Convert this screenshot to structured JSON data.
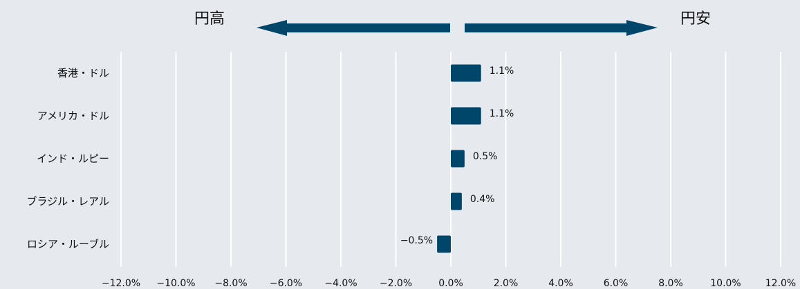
{
  "annotations": {
    "left_label": "円高",
    "right_label": "円安"
  },
  "colors": {
    "bar": "#00466a",
    "arrow": "#00466a",
    "grid": "#ffffff",
    "background": "#e6e9ed"
  },
  "chart_data": {
    "type": "bar",
    "orientation": "horizontal",
    "categories": [
      "香港・ドル",
      "アメリカ・ドル",
      "インド・ルピー",
      "ブラジル・レアル",
      "ロシア・ルーブル"
    ],
    "values": [
      1.1,
      1.1,
      0.5,
      0.4,
      -0.5
    ],
    "value_labels": [
      "1.1%",
      "1.1%",
      "0.5%",
      "0.4%",
      "−0.5%"
    ],
    "xlim": [
      -12.0,
      12.0
    ],
    "x_ticks": [
      -12,
      -10,
      -8,
      -6,
      -4,
      -2,
      0,
      2,
      4,
      6,
      8,
      10,
      12
    ],
    "x_tick_labels": [
      "−12.0%",
      "−10.0%",
      "−8.0%",
      "−6.0%",
      "−4.0%",
      "−2.0%",
      "0.0%",
      "2.0%",
      "4.0%",
      "6.0%",
      "8.0%",
      "10.0%",
      "12.0%"
    ],
    "grid": true,
    "legend": "none"
  }
}
